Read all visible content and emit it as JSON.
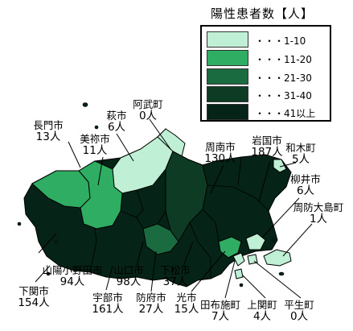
{
  "legend": {
    "title": "陽性患者数【人】",
    "items": [
      {
        "label": "・・・1-10",
        "color": "#bff0d5"
      },
      {
        "label": "・・・11-20",
        "color": "#2fad63"
      },
      {
        "label": "・・・21-30",
        "color": "#1a6b40"
      },
      {
        "label": "・・・31-40",
        "color": "#0e3b23"
      },
      {
        "label": "・・・41以上",
        "color": "#052316"
      }
    ]
  },
  "cities": [
    {
      "id": "nagato",
      "name": "長門市",
      "count": "13人"
    },
    {
      "id": "hagi",
      "name": "萩市",
      "count": "6人"
    },
    {
      "id": "abu",
      "name": "阿武町",
      "count": "0人"
    },
    {
      "id": "mine",
      "name": "美祢市",
      "count": "11人"
    },
    {
      "id": "shunan",
      "name": "周南市",
      "count": "130人"
    },
    {
      "id": "iwakuni",
      "name": "岩国市",
      "count": "187人"
    },
    {
      "id": "waki",
      "name": "和木町",
      "count": "5人"
    },
    {
      "id": "yanai",
      "name": "柳井市",
      "count": "6人"
    },
    {
      "id": "suooshima",
      "name": "周防大島町",
      "count": "1人"
    },
    {
      "id": "sanyoonoda",
      "name": "山陽小野田市",
      "count": "94人"
    },
    {
      "id": "shimonoseki",
      "name": "下関市",
      "count": "154人"
    },
    {
      "id": "ube",
      "name": "宇部市",
      "count": "161人"
    },
    {
      "id": "yamaguchi",
      "name": "山口市",
      "count": "98人"
    },
    {
      "id": "hofu",
      "name": "防府市",
      "count": "27人"
    },
    {
      "id": "kudamatsu",
      "name": "下松市",
      "count": "37人"
    },
    {
      "id": "hikari",
      "name": "光市",
      "count": "15人"
    },
    {
      "id": "tabuse",
      "name": "田布施町",
      "count": "7人"
    },
    {
      "id": "kaminoseki",
      "name": "上関町",
      "count": "4人"
    },
    {
      "id": "hirao",
      "name": "平生町",
      "count": "0人"
    }
  ]
}
